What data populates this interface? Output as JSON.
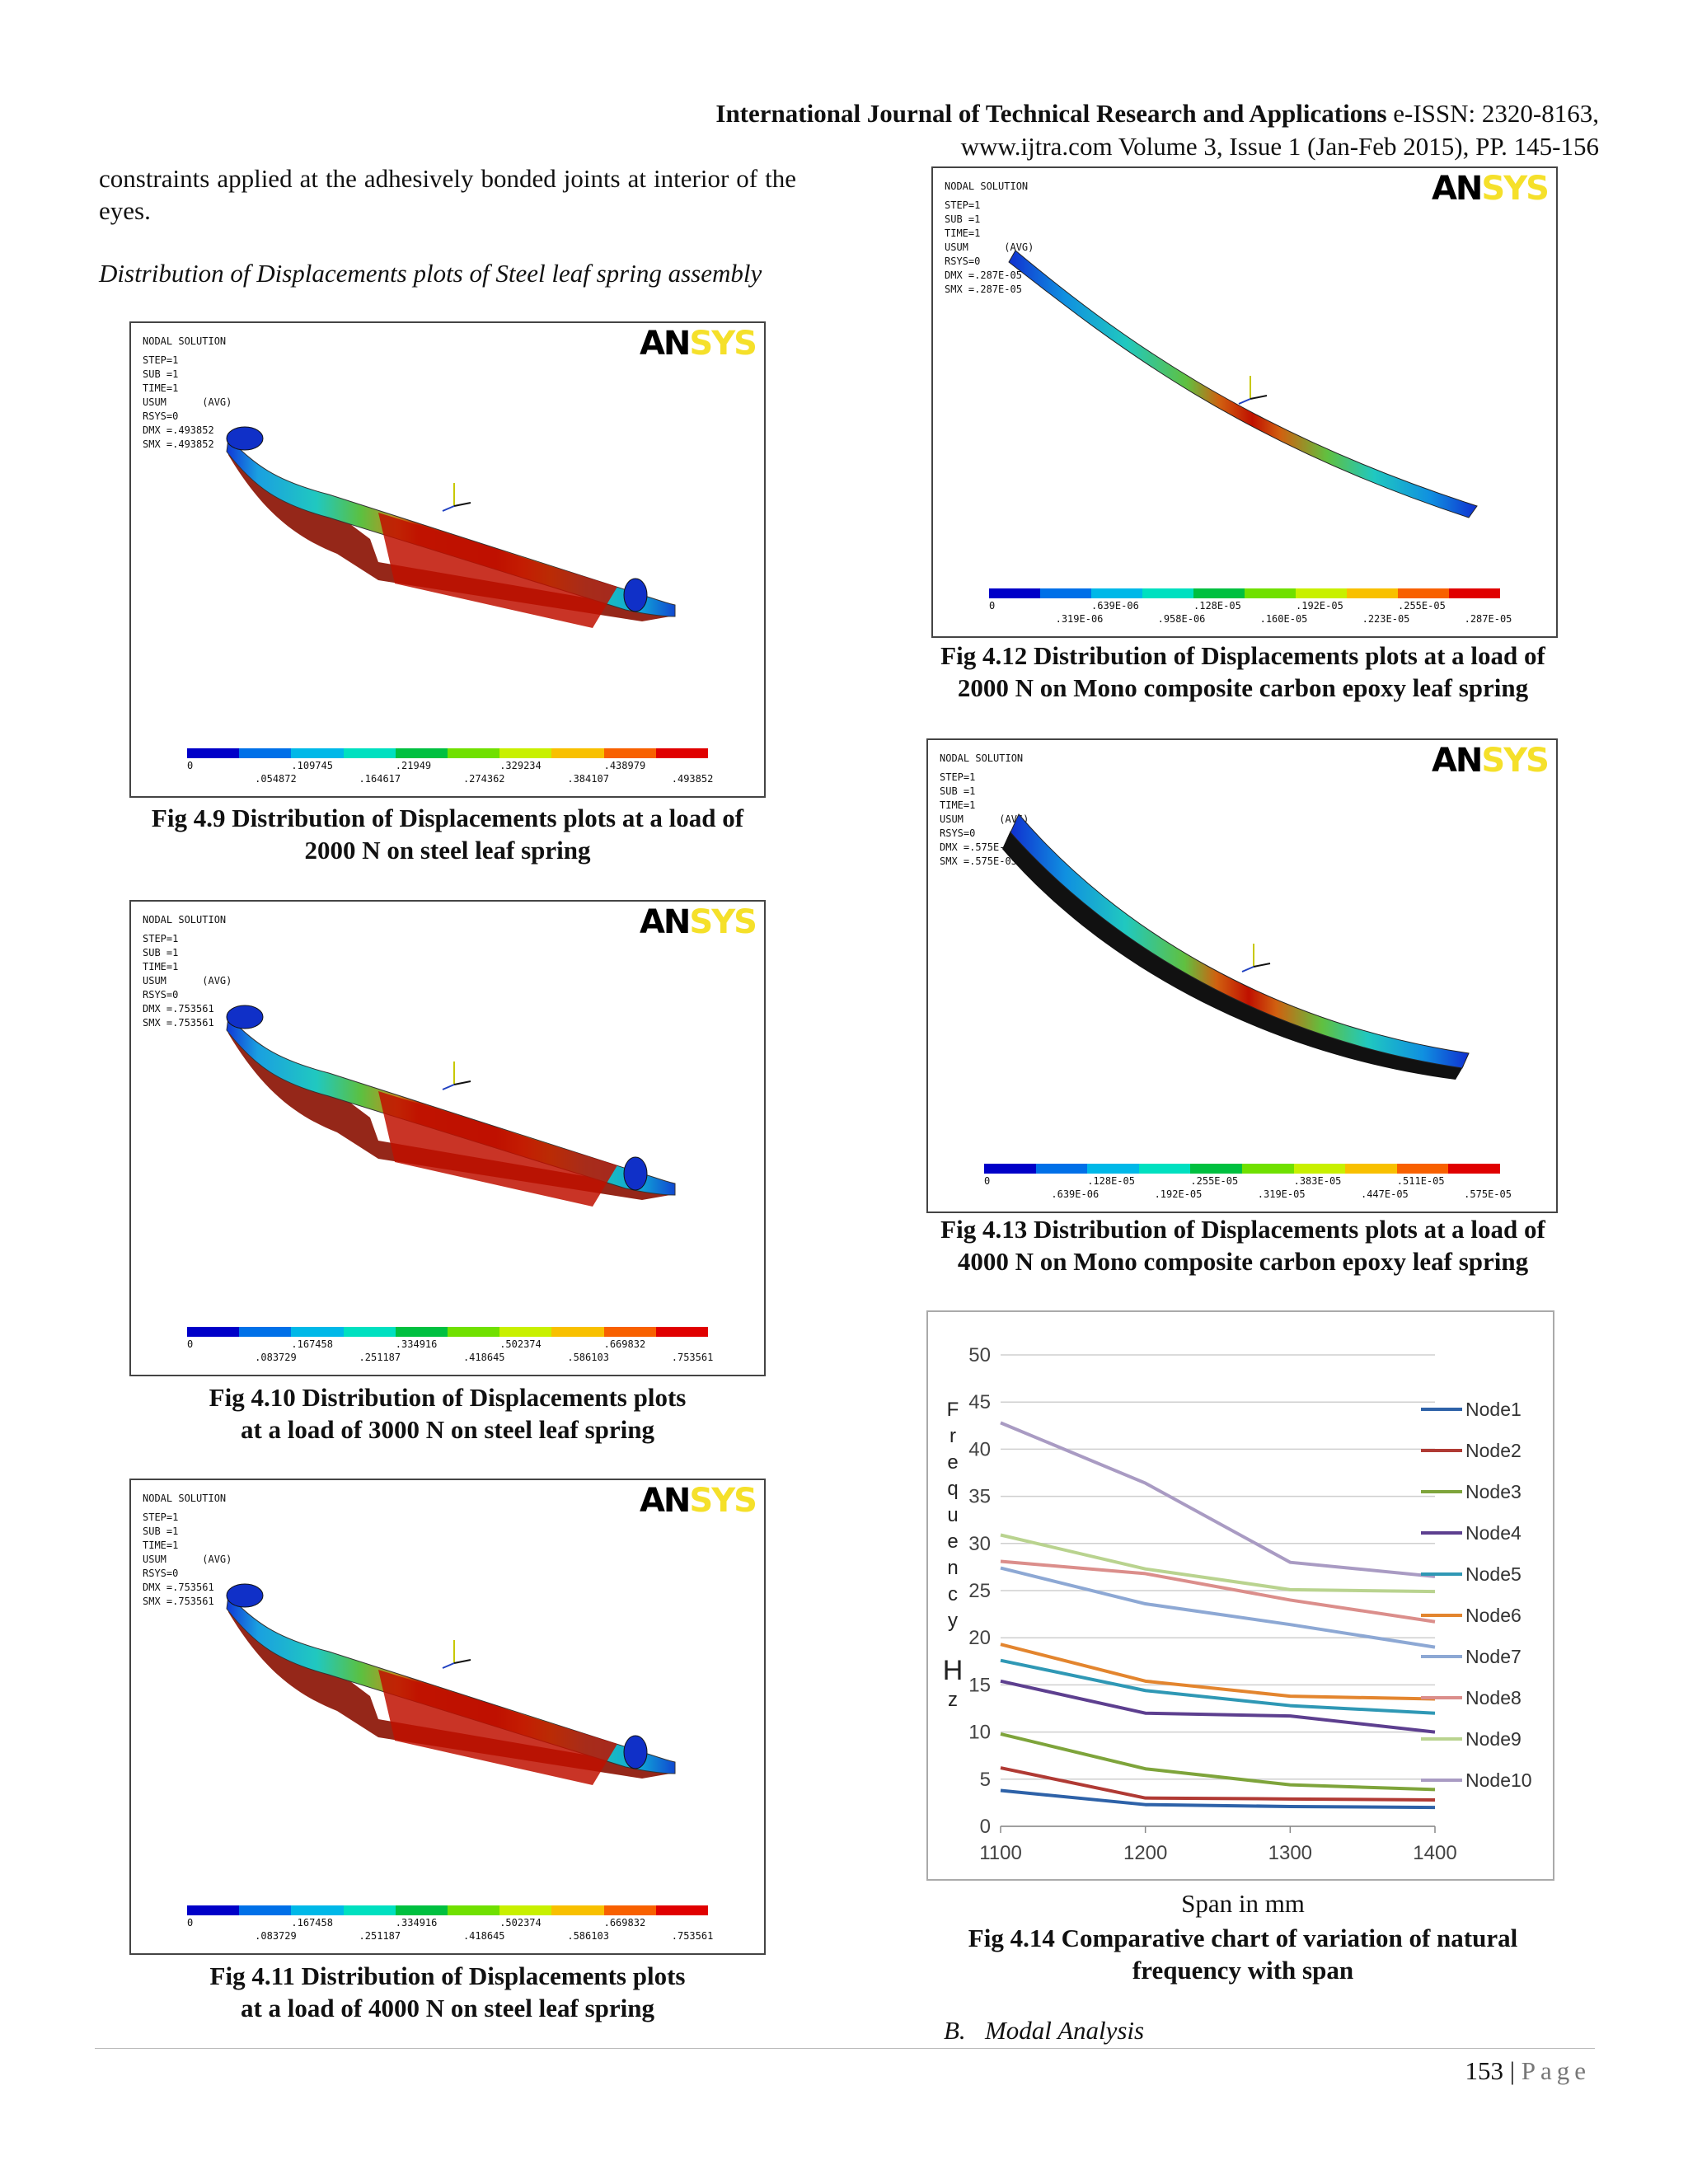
{
  "header": {
    "journal": "International Journal of Technical Research and Applications",
    "issn": "e-ISSN: 2320-8163,",
    "line2": "www.ijtra.com Volume 3, Issue 1 (Jan-Feb 2015), PP. 145-156"
  },
  "body": {
    "para1": "constraints applied at the adhesively bonded joints at interior of the eyes.",
    "subhead": "Distribution of Displacements plots of Steel leaf spring assembly",
    "section_b_num": "B.",
    "section_b_title": "Modal Analysis"
  },
  "ansys": {
    "title": "NODAL SOLUTION",
    "logo_a": "AN",
    "logo_b": "SYS",
    "step": "STEP=1",
    "sub": "SUB =1",
    "time": "TIME=1",
    "usum": "USUM      (AVG)",
    "rsys": "RSYS=0"
  },
  "figures": {
    "f49": {
      "caption1": "Fig 4.9 Distribution of Displacements plots at a load of",
      "caption2": "2000 N on steel leaf spring",
      "dmx": "DMX =.493852",
      "smx": "SMX =.493852",
      "legend_top": [
        "0",
        ".109745",
        ".21949",
        ".329234",
        ".438979"
      ],
      "legend_bot": [
        ".054872",
        ".164617",
        ".274362",
        ".384107",
        ".493852"
      ]
    },
    "f410": {
      "caption1": "Fig 4.10 Distribution of Displacements plots",
      "caption2": "at a load of 3000 N on steel leaf spring",
      "dmx": "DMX =.753561",
      "smx": "SMX =.753561",
      "legend_top": [
        "0",
        ".167458",
        ".334916",
        ".502374",
        ".669832"
      ],
      "legend_bot": [
        ".083729",
        ".251187",
        ".418645",
        ".586103",
        ".753561"
      ]
    },
    "f411": {
      "caption1": "Fig 4.11 Distribution of Displacements plots",
      "caption2": "at a load of 4000 N on steel leaf spring",
      "dmx": "DMX =.753561",
      "smx": "SMX =.753561",
      "legend_top": [
        "0",
        ".167458",
        ".334916",
        ".502374",
        ".669832"
      ],
      "legend_bot": [
        ".083729",
        ".251187",
        ".418645",
        ".586103",
        ".753561"
      ]
    },
    "f412": {
      "caption1": "Fig 4.12 Distribution of Displacements plots at a load of",
      "caption2": "2000 N on Mono composite carbon epoxy leaf spring",
      "dmx": "DMX =.287E-05",
      "smx": "SMX =.287E-05",
      "legend_top": [
        "0",
        ".639E-06",
        ".128E-05",
        ".192E-05",
        ".255E-05"
      ],
      "legend_bot": [
        ".319E-06",
        ".958E-06",
        ".160E-05",
        ".223E-05",
        ".287E-05"
      ]
    },
    "f413": {
      "caption1": "Fig 4.13 Distribution of Displacements plots at a load of",
      "caption2": "4000 N on Mono composite carbon epoxy leaf spring",
      "dmx": "DMX =.575E-05",
      "smx": "SMX =.575E-05",
      "legend_top": [
        "0",
        ".128E-05",
        ".255E-05",
        ".383E-05",
        ".511E-05"
      ],
      "legend_bot": [
        ".639E-06",
        ".192E-05",
        ".319E-05",
        ".447E-05",
        ".575E-05"
      ]
    },
    "f414": {
      "caption1": "Fig 4.14 Comparative chart of variation of natural",
      "caption2": "frequency with span",
      "xlabel": "Span in mm"
    }
  },
  "chart_data": {
    "type": "line",
    "title": "",
    "xlabel": "Span in mm",
    "ylabel": "Frequency Hz",
    "ylabel_chars": [
      "F",
      "r",
      "e",
      "q",
      "u",
      "e",
      "n",
      "c",
      "y",
      "",
      "H",
      "z"
    ],
    "x": [
      1100,
      1200,
      1300,
      1400
    ],
    "data_x": [
      1100,
      1200,
      1300,
      1400
    ],
    "xlim": [
      1100,
      1400
    ],
    "ylim": [
      0,
      50
    ],
    "yticks": [
      0,
      5,
      10,
      15,
      20,
      25,
      30,
      35,
      40,
      45,
      50
    ],
    "grid": true,
    "legend": "right",
    "series": [
      {
        "name": "Node1",
        "color": "#2e62a8",
        "values": [
          3.8,
          2.3,
          2.1,
          2.0
        ]
      },
      {
        "name": "Node2",
        "color": "#b03a34",
        "values": [
          6.2,
          3.0,
          2.9,
          2.8
        ]
      },
      {
        "name": "Node3",
        "color": "#7ea43b",
        "values": [
          9.8,
          6.1,
          4.4,
          3.9
        ]
      },
      {
        "name": "Node4",
        "color": "#5d3f8f",
        "values": [
          15.4,
          12.0,
          11.7,
          10.0
        ]
      },
      {
        "name": "Node5",
        "color": "#2f98b5",
        "values": [
          17.6,
          14.4,
          12.8,
          12.0
        ]
      },
      {
        "name": "Node6",
        "color": "#e3852e",
        "values": [
          19.3,
          15.4,
          13.8,
          13.5
        ]
      },
      {
        "name": "Node7",
        "color": "#8da8d4",
        "values": [
          27.4,
          23.6,
          21.4,
          19.0
        ]
      },
      {
        "name": "Node8",
        "color": "#db8e8b",
        "values": [
          28.1,
          26.8,
          24.0,
          21.7
        ]
      },
      {
        "name": "Node9",
        "color": "#b9d38f",
        "values": [
          30.9,
          27.3,
          25.1,
          24.9
        ]
      },
      {
        "name": "Node10",
        "color": "#a99bc3",
        "values": [
          42.8,
          36.4,
          28.0,
          26.5
        ]
      }
    ]
  }
}
